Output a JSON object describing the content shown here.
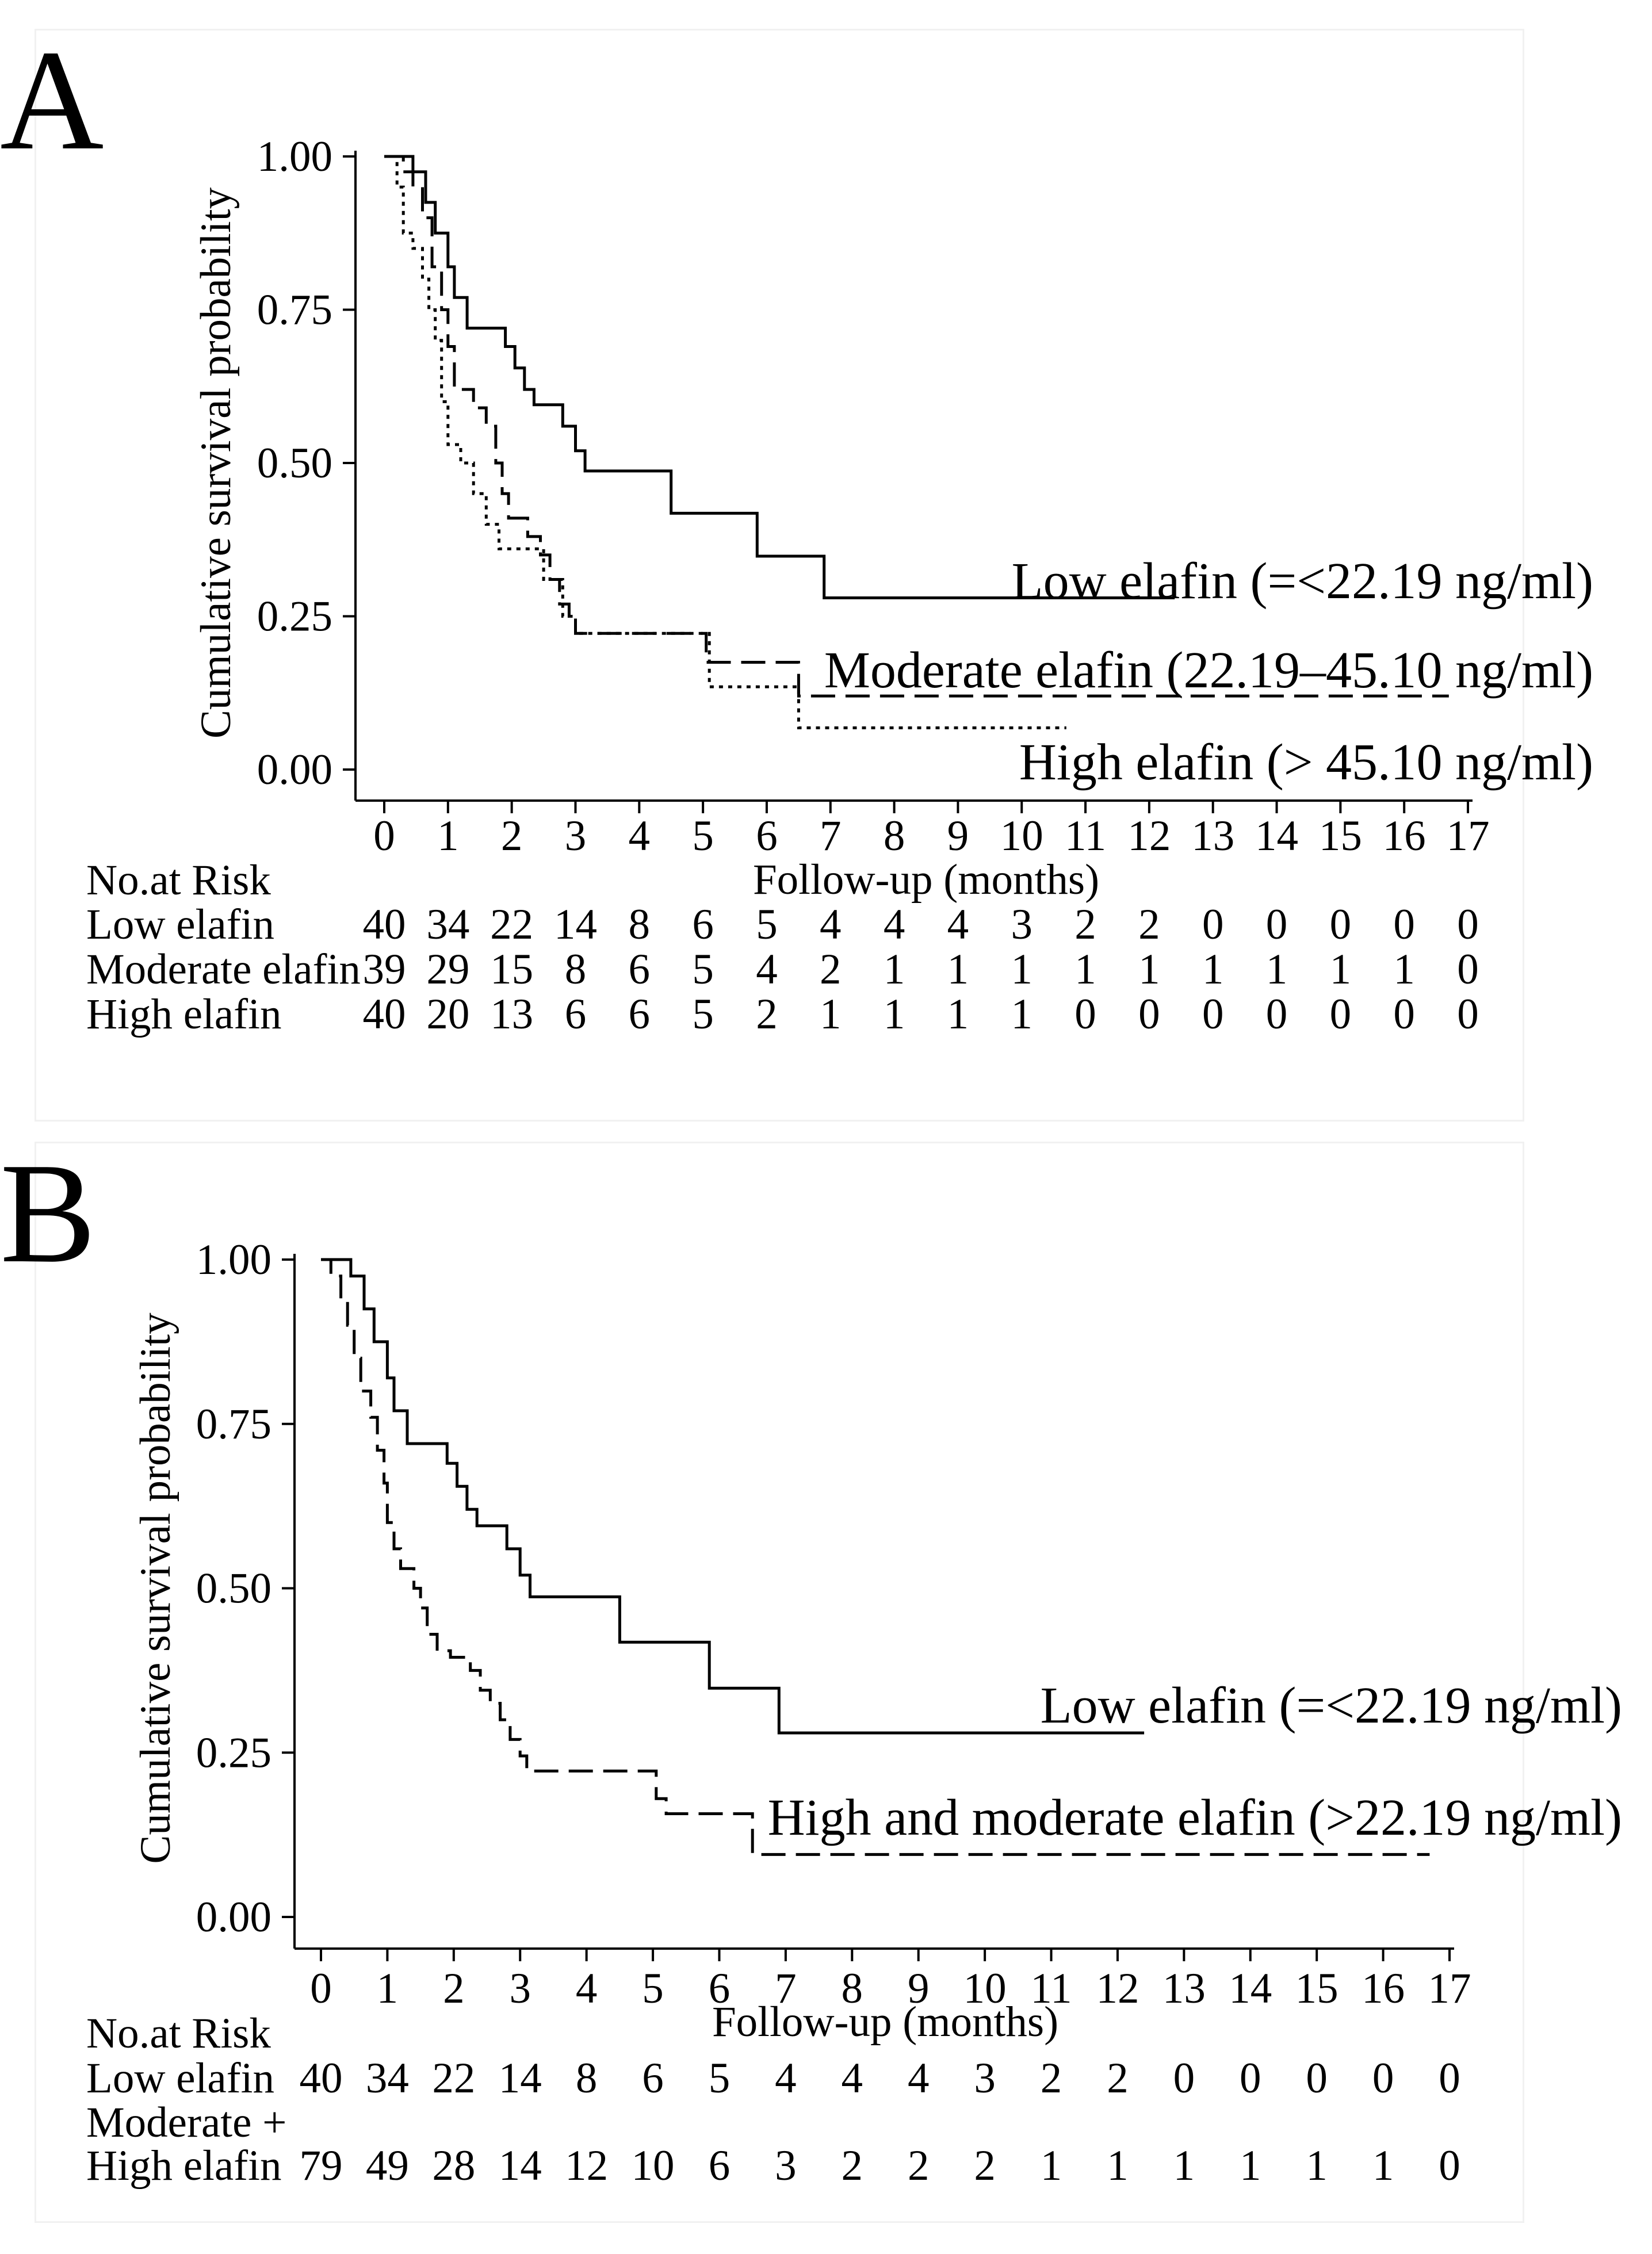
{
  "panels": [
    {
      "letter": "A",
      "risk_heading": "No.at Risk",
      "chart_data": {
        "type": "line",
        "subtype": "kaplan-meier step",
        "title": "",
        "xlabel": "Follow-up (months)",
        "ylabel": "Cumulative survival probability",
        "xlim": [
          0,
          17
        ],
        "ylim": [
          0,
          1
        ],
        "x_ticks": [
          "0",
          "1",
          "2",
          "3",
          "4",
          "5",
          "6",
          "7",
          "8",
          "9",
          "10",
          "11",
          "12",
          "13",
          "14",
          "15",
          "16",
          "17"
        ],
        "y_ticks": [
          "0.00",
          "0.25",
          "0.50",
          "0.75",
          "1.00"
        ],
        "series": [
          {
            "name": "Low elafin (=<22.19 ng/ml)",
            "style": "solid",
            "points": [
              [
                0,
                1.0
              ],
              [
                0.45,
                1.0
              ],
              [
                0.45,
                0.975
              ],
              [
                0.65,
                0.975
              ],
              [
                0.65,
                0.925
              ],
              [
                0.8,
                0.925
              ],
              [
                0.8,
                0.875
              ],
              [
                1.0,
                0.875
              ],
              [
                1.0,
                0.82
              ],
              [
                1.1,
                0.82
              ],
              [
                1.1,
                0.77
              ],
              [
                1.3,
                0.77
              ],
              [
                1.3,
                0.72
              ],
              [
                1.9,
                0.72
              ],
              [
                1.9,
                0.69
              ],
              [
                2.05,
                0.69
              ],
              [
                2.05,
                0.655
              ],
              [
                2.2,
                0.655
              ],
              [
                2.2,
                0.62
              ],
              [
                2.35,
                0.62
              ],
              [
                2.35,
                0.595
              ],
              [
                2.8,
                0.595
              ],
              [
                2.8,
                0.56
              ],
              [
                3.0,
                0.56
              ],
              [
                3.0,
                0.52
              ],
              [
                3.15,
                0.52
              ],
              [
                3.15,
                0.487
              ],
              [
                4.5,
                0.487
              ],
              [
                4.5,
                0.418
              ],
              [
                5.85,
                0.418
              ],
              [
                5.85,
                0.348
              ],
              [
                6.9,
                0.348
              ],
              [
                6.9,
                0.28
              ],
              [
                12.4,
                0.28
              ]
            ]
          },
          {
            "name": "Moderate elafin (22.19–45.10 ng/ml)",
            "style": "dashed",
            "points": [
              [
                0,
                1.0
              ],
              [
                0.3,
                1.0
              ],
              [
                0.3,
                0.975
              ],
              [
                0.45,
                0.975
              ],
              [
                0.45,
                0.95
              ],
              [
                0.6,
                0.95
              ],
              [
                0.6,
                0.9
              ],
              [
                0.75,
                0.9
              ],
              [
                0.75,
                0.82
              ],
              [
                0.9,
                0.82
              ],
              [
                0.9,
                0.75
              ],
              [
                1.0,
                0.75
              ],
              [
                1.0,
                0.69
              ],
              [
                1.1,
                0.69
              ],
              [
                1.1,
                0.62
              ],
              [
                1.4,
                0.62
              ],
              [
                1.4,
                0.59
              ],
              [
                1.6,
                0.59
              ],
              [
                1.6,
                0.56
              ],
              [
                1.75,
                0.56
              ],
              [
                1.75,
                0.5
              ],
              [
                1.85,
                0.5
              ],
              [
                1.85,
                0.45
              ],
              [
                1.95,
                0.45
              ],
              [
                1.95,
                0.41
              ],
              [
                2.25,
                0.41
              ],
              [
                2.25,
                0.38
              ],
              [
                2.45,
                0.38
              ],
              [
                2.45,
                0.35
              ],
              [
                2.6,
                0.35
              ],
              [
                2.6,
                0.31
              ],
              [
                2.75,
                0.31
              ],
              [
                2.75,
                0.27
              ],
              [
                2.9,
                0.27
              ],
              [
                2.9,
                0.25
              ],
              [
                3.0,
                0.25
              ],
              [
                3.0,
                0.222
              ],
              [
                5.05,
                0.222
              ],
              [
                5.05,
                0.175
              ],
              [
                6.5,
                0.175
              ],
              [
                6.5,
                0.12
              ],
              [
                16.7,
                0.12
              ]
            ]
          },
          {
            "name": "High elafin (> 45.10 ng/ml)",
            "style": "dotted",
            "points": [
              [
                0,
                1.0
              ],
              [
                0.2,
                1.0
              ],
              [
                0.2,
                0.95
              ],
              [
                0.3,
                0.95
              ],
              [
                0.3,
                0.875
              ],
              [
                0.45,
                0.875
              ],
              [
                0.45,
                0.85
              ],
              [
                0.6,
                0.85
              ],
              [
                0.6,
                0.8
              ],
              [
                0.7,
                0.8
              ],
              [
                0.7,
                0.75
              ],
              [
                0.8,
                0.75
              ],
              [
                0.8,
                0.7
              ],
              [
                0.9,
                0.7
              ],
              [
                0.9,
                0.6
              ],
              [
                1.0,
                0.6
              ],
              [
                1.0,
                0.53
              ],
              [
                1.2,
                0.53
              ],
              [
                1.2,
                0.5
              ],
              [
                1.4,
                0.5
              ],
              [
                1.4,
                0.45
              ],
              [
                1.6,
                0.45
              ],
              [
                1.6,
                0.4
              ],
              [
                1.8,
                0.4
              ],
              [
                1.8,
                0.36
              ],
              [
                2.5,
                0.36
              ],
              [
                2.5,
                0.31
              ],
              [
                2.8,
                0.31
              ],
              [
                2.8,
                0.25
              ],
              [
                3.0,
                0.25
              ],
              [
                3.0,
                0.222
              ],
              [
                5.1,
                0.222
              ],
              [
                5.1,
                0.135
              ],
              [
                6.5,
                0.135
              ],
              [
                6.5,
                0.068
              ],
              [
                10.7,
                0.068
              ]
            ]
          }
        ],
        "risk_table": [
          {
            "label": "Low elafin",
            "counts": [
              "40",
              "34",
              "22",
              "14",
              "8",
              "6",
              "5",
              "4",
              "4",
              "4",
              "3",
              "2",
              "2",
              "0",
              "0",
              "0",
              "0",
              "0"
            ]
          },
          {
            "label": "Moderate elafin",
            "counts": [
              "39",
              "29",
              "15",
              "8",
              "6",
              "5",
              "4",
              "2",
              "1",
              "1",
              "1",
              "1",
              "1",
              "1",
              "1",
              "1",
              "1",
              "0"
            ]
          },
          {
            "label": "High elafin",
            "counts": [
              "40",
              "20",
              "13",
              "6",
              "6",
              "5",
              "2",
              "1",
              "1",
              "1",
              "1",
              "0",
              "0",
              "0",
              "0",
              "0",
              "0",
              "0"
            ]
          }
        ]
      }
    },
    {
      "letter": "B",
      "risk_heading": "No.at Risk",
      "chart_data": {
        "type": "line",
        "subtype": "kaplan-meier step",
        "title": "",
        "xlabel": "Follow-up (months)",
        "ylabel": "Cumulative survival probability",
        "xlim": [
          0,
          17
        ],
        "ylim": [
          0,
          1
        ],
        "x_ticks": [
          "0",
          "1",
          "2",
          "3",
          "4",
          "5",
          "6",
          "7",
          "8",
          "9",
          "10",
          "11",
          "12",
          "13",
          "14",
          "15",
          "16",
          "17"
        ],
        "y_ticks": [
          "0.00",
          "0.25",
          "0.50",
          "0.75",
          "1.00"
        ],
        "series": [
          {
            "name": "Low elafin (=<22.19 ng/ml)",
            "style": "solid",
            "points": [
              [
                0,
                1.0
              ],
              [
                0.45,
                1.0
              ],
              [
                0.45,
                0.975
              ],
              [
                0.65,
                0.975
              ],
              [
                0.65,
                0.925
              ],
              [
                0.8,
                0.925
              ],
              [
                0.8,
                0.875
              ],
              [
                1.0,
                0.875
              ],
              [
                1.0,
                0.82
              ],
              [
                1.1,
                0.82
              ],
              [
                1.1,
                0.77
              ],
              [
                1.3,
                0.77
              ],
              [
                1.3,
                0.72
              ],
              [
                1.9,
                0.72
              ],
              [
                1.9,
                0.69
              ],
              [
                2.05,
                0.69
              ],
              [
                2.05,
                0.655
              ],
              [
                2.2,
                0.655
              ],
              [
                2.2,
                0.62
              ],
              [
                2.35,
                0.62
              ],
              [
                2.35,
                0.595
              ],
              [
                2.8,
                0.595
              ],
              [
                2.8,
                0.56
              ],
              [
                3.0,
                0.56
              ],
              [
                3.0,
                0.52
              ],
              [
                3.15,
                0.52
              ],
              [
                3.15,
                0.487
              ],
              [
                4.5,
                0.487
              ],
              [
                4.5,
                0.418
              ],
              [
                5.85,
                0.418
              ],
              [
                5.85,
                0.348
              ],
              [
                6.9,
                0.348
              ],
              [
                6.9,
                0.28
              ],
              [
                12.4,
                0.28
              ]
            ]
          },
          {
            "name": "High and moderate elafin (>22.19 ng/ml)",
            "style": "dashed",
            "points": [
              [
                0,
                1.0
              ],
              [
                0.15,
                1.0
              ],
              [
                0.15,
                0.975
              ],
              [
                0.3,
                0.975
              ],
              [
                0.3,
                0.94
              ],
              [
                0.4,
                0.94
              ],
              [
                0.4,
                0.9
              ],
              [
                0.5,
                0.9
              ],
              [
                0.5,
                0.85
              ],
              [
                0.6,
                0.85
              ],
              [
                0.6,
                0.8
              ],
              [
                0.75,
                0.8
              ],
              [
                0.75,
                0.76
              ],
              [
                0.85,
                0.76
              ],
              [
                0.85,
                0.71
              ],
              [
                0.95,
                0.71
              ],
              [
                0.95,
                0.66
              ],
              [
                1.0,
                0.66
              ],
              [
                1.0,
                0.6
              ],
              [
                1.1,
                0.6
              ],
              [
                1.1,
                0.56
              ],
              [
                1.2,
                0.56
              ],
              [
                1.2,
                0.53
              ],
              [
                1.4,
                0.53
              ],
              [
                1.4,
                0.5
              ],
              [
                1.5,
                0.5
              ],
              [
                1.5,
                0.47
              ],
              [
                1.6,
                0.47
              ],
              [
                1.6,
                0.43
              ],
              [
                1.75,
                0.43
              ],
              [
                1.75,
                0.405
              ],
              [
                1.95,
                0.405
              ],
              [
                1.95,
                0.395
              ],
              [
                2.25,
                0.395
              ],
              [
                2.25,
                0.375
              ],
              [
                2.4,
                0.375
              ],
              [
                2.4,
                0.345
              ],
              [
                2.55,
                0.345
              ],
              [
                2.55,
                0.325
              ],
              [
                2.7,
                0.325
              ],
              [
                2.7,
                0.3
              ],
              [
                2.85,
                0.3
              ],
              [
                2.85,
                0.27
              ],
              [
                3.0,
                0.27
              ],
              [
                3.0,
                0.245
              ],
              [
                3.1,
                0.245
              ],
              [
                3.1,
                0.222
              ],
              [
                5.05,
                0.222
              ],
              [
                5.05,
                0.18
              ],
              [
                5.2,
                0.18
              ],
              [
                5.2,
                0.157
              ],
              [
                6.5,
                0.157
              ],
              [
                6.5,
                0.095
              ],
              [
                16.7,
                0.095
              ]
            ]
          }
        ],
        "risk_table": [
          {
            "label": "Low elafin",
            "counts": [
              "40",
              "34",
              "22",
              "14",
              "8",
              "6",
              "5",
              "4",
              "4",
              "4",
              "3",
              "2",
              "2",
              "0",
              "0",
              "0",
              "0",
              "0"
            ]
          },
          {
            "label": "Moderate +",
            "label2": "High elafin",
            "counts": [
              "79",
              "49",
              "28",
              "14",
              "12",
              "10",
              "6",
              "3",
              "2",
              "2",
              "2",
              "1",
              "1",
              "1",
              "1",
              "1",
              "1",
              "0"
            ]
          }
        ]
      }
    }
  ]
}
